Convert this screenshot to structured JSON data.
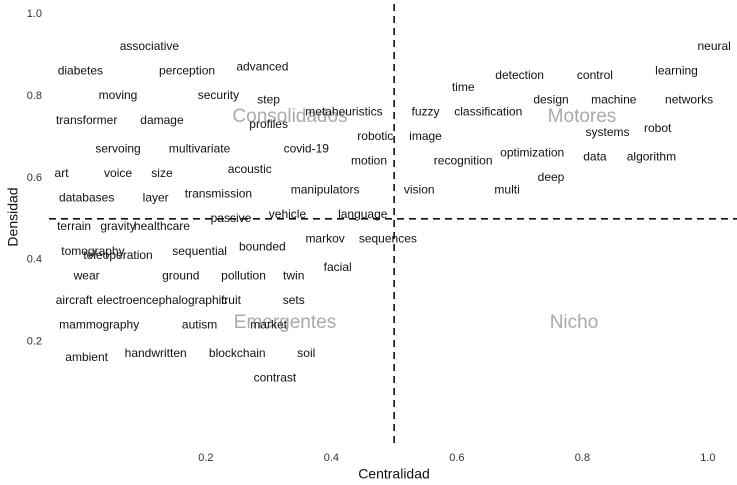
{
  "chart_data": {
    "type": "scatter",
    "xlabel": "Centralidad",
    "ylabel": "Densidad",
    "xlim": [
      -0.05,
      1.04
    ],
    "ylim": [
      -0.05,
      1.02
    ],
    "xticks": [
      0.2,
      0.4,
      0.6,
      0.8,
      {
        "value": 1.0,
        "label": "1.0"
      }
    ],
    "yticks": [
      0.2,
      0.4,
      0.6,
      0.8,
      {
        "value": 1.0,
        "label": "1.0"
      }
    ],
    "vline": 0.5,
    "hline": 0.5,
    "annotations": [
      "Consolidados",
      "Motores",
      "Emergentes",
      "Nicho"
    ],
    "labels": [
      "associative",
      "neural",
      "diabetes",
      "perception",
      "advanced",
      "detection",
      "control",
      "learning",
      "time",
      "moving",
      "security",
      "step",
      "design",
      "machine",
      "networks",
      "metaheuristics",
      "fuzzy",
      "classification",
      "transformer",
      "damage",
      "profiles",
      "robot",
      "systems",
      "robotic",
      "image",
      "servoing",
      "multivariate",
      "covid-19",
      "optimization",
      "data",
      "algorithm",
      "motion",
      "recognition",
      "art",
      "voice",
      "size",
      "acoustic",
      "deep",
      "manipulators",
      "vision",
      "multi",
      "databases",
      "layer",
      "transmission",
      "language",
      "vehicle",
      "passive",
      "terrain",
      "gravity",
      "healthcare",
      "sequences",
      "markov",
      "bounded",
      "sequential",
      "tomography",
      "teleoperation",
      "facial",
      "wear",
      "ground",
      "pollution",
      "twin",
      "aircraft",
      "electroencephalographic",
      "fruit",
      "sets",
      "mammography",
      "autism",
      "market",
      "ambient",
      "handwritten",
      "blockchain",
      "soil",
      "contrast"
    ],
    "x": [
      0.11,
      1.01,
      0.0,
      0.17,
      0.29,
      0.7,
      0.82,
      0.95,
      0.61,
      0.06,
      0.22,
      0.3,
      0.75,
      0.85,
      0.97,
      0.42,
      0.55,
      0.65,
      0.01,
      0.13,
      0.3,
      0.92,
      0.84,
      0.47,
      0.55,
      0.06,
      0.19,
      0.36,
      0.72,
      0.82,
      0.91,
      0.46,
      0.61,
      -0.03,
      0.06,
      0.13,
      0.27,
      0.75,
      0.39,
      0.54,
      0.68,
      0.01,
      0.12,
      0.22,
      0.45,
      0.33,
      0.24,
      -0.01,
      0.06,
      0.13,
      0.49,
      0.39,
      0.29,
      0.19,
      0.02,
      0.06,
      0.41,
      0.01,
      0.16,
      0.26,
      0.34,
      -0.01,
      0.13,
      0.24,
      0.34,
      0.03,
      0.19,
      0.3,
      0.01,
      0.12,
      0.25,
      0.36,
      0.31
    ],
    "values": [
      0.92,
      0.92,
      0.86,
      0.86,
      0.87,
      0.85,
      0.85,
      0.86,
      0.82,
      0.8,
      0.8,
      0.79,
      0.79,
      0.79,
      0.79,
      0.76,
      0.76,
      0.76,
      0.74,
      0.74,
      0.73,
      0.72,
      0.71,
      0.7,
      0.7,
      0.67,
      0.67,
      0.67,
      0.66,
      0.65,
      0.65,
      0.64,
      0.64,
      0.61,
      0.61,
      0.61,
      0.62,
      0.6,
      0.57,
      0.57,
      0.57,
      0.55,
      0.55,
      0.56,
      0.51,
      0.51,
      0.5,
      0.48,
      0.48,
      0.48,
      0.45,
      0.45,
      0.43,
      0.42,
      0.42,
      0.41,
      0.38,
      0.36,
      0.36,
      0.36,
      0.36,
      0.3,
      0.3,
      0.3,
      0.3,
      0.24,
      0.24,
      0.24,
      0.16,
      0.17,
      0.17,
      0.17,
      0.11
    ]
  }
}
